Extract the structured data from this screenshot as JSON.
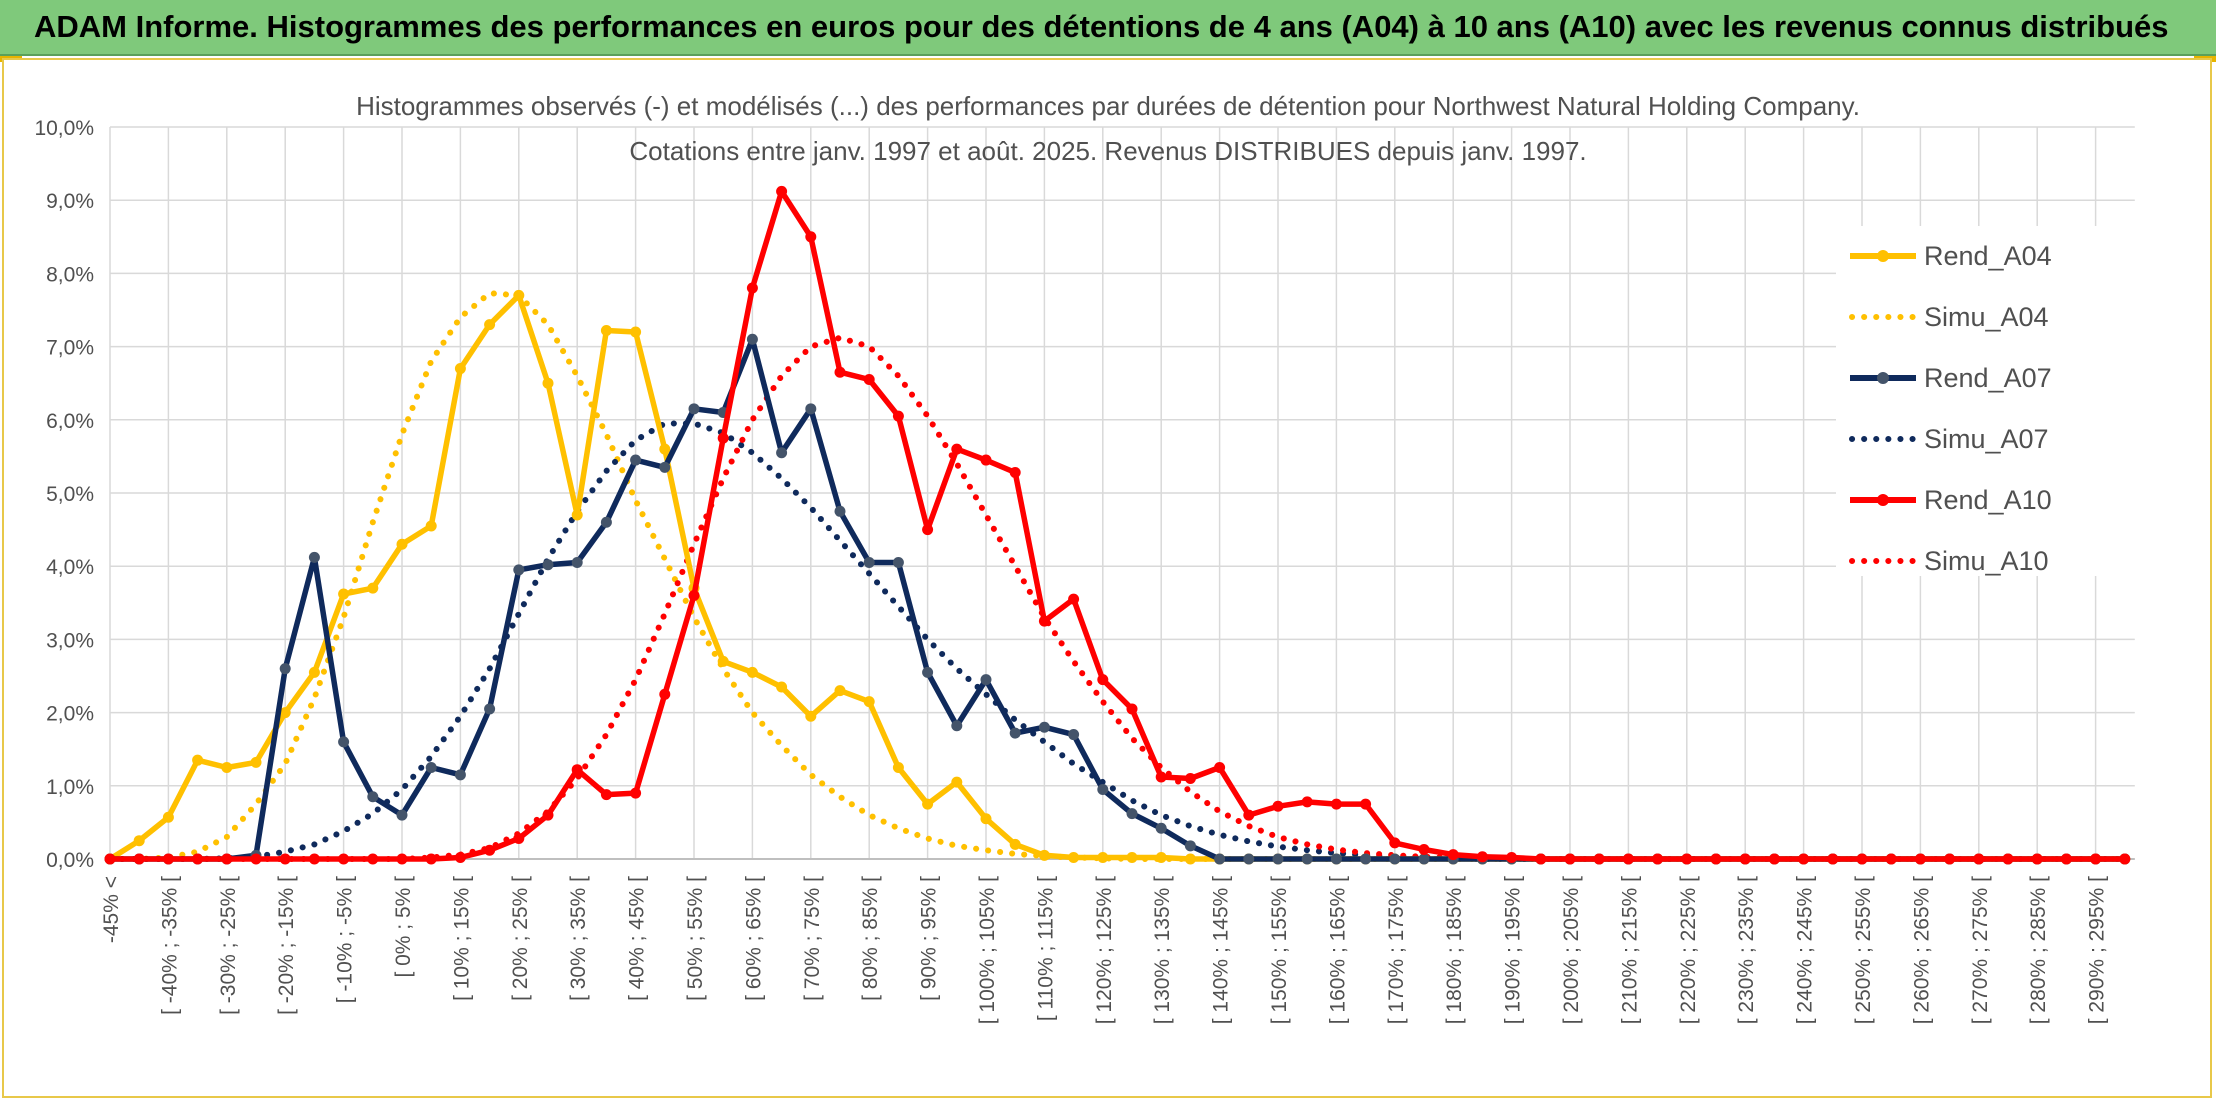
{
  "header": {
    "title": "ADAM Informe. Histogrammes des performances en euros pour des détentions de 4 ans (A04) à 10 ans (A10) avec les revenus connus distribués"
  },
  "colors": {
    "banner": "#7fc97b",
    "frame": "#e8c84a",
    "A04": "#ffc000",
    "A07": "#0f2a5c",
    "A07_marker": "#44546a",
    "A10": "#ff0000",
    "grid": "#d9d9d9",
    "text": "#505050"
  },
  "chart_data": {
    "type": "line",
    "title": "Histogrammes observés (-) et modélisés (...) des performances par durées de détention pour Northwest Natural Holding Company.",
    "subtitle": "Cotations entre janv. 1997 et août. 2025. Revenus DISTRIBUES depuis janv. 1997.",
    "xlabel": "",
    "ylabel": "",
    "ylim": [
      0,
      10
    ],
    "y_ticks": [
      "0,0%",
      "1,0%",
      "2,0%",
      "3,0%",
      "4,0%",
      "5,0%",
      "6,0%",
      "7,0%",
      "8,0%",
      "9,0%",
      "10,0%"
    ],
    "y_unit": "%",
    "grid": true,
    "legend_position": "right",
    "categories": [
      "-45% <",
      "",
      "[ -40% ; -35% [",
      "",
      "[ -30% ; -25% [",
      "",
      "[ -20% ; -15% [",
      "",
      "[ -10% ; -5% [",
      "",
      "[ 0% ; 5% [",
      "",
      "[ 10% ; 15% [",
      "",
      "[ 20% ; 25% [",
      "",
      "[ 30% ; 35% [",
      "",
      "[ 40% ; 45% [",
      "",
      "[ 50% ; 55% [",
      "",
      "[ 60% ; 65% [",
      "",
      "[ 70% ; 75% [",
      "",
      "[ 80% ; 85% [",
      "",
      "[ 90% ; 95% [",
      "",
      "[ 100% ; 105% [",
      "",
      "[ 110% ; 115% [",
      "",
      "[ 120% ; 125% [",
      "",
      "[ 130% ; 135% [",
      "",
      "[ 140% ; 145% [",
      "",
      "[ 150% ; 155% [",
      "",
      "[ 160% ; 165% [",
      "",
      "[ 170% ; 175% [",
      "",
      "[ 180% ; 185% [",
      "",
      "[ 190% ; 195% [",
      "",
      "[ 200% ; 205% [",
      "",
      "[ 210% ; 215% [",
      "",
      "[ 220% ; 225% [",
      "",
      "[ 230% ; 235% [",
      "",
      "[ 240% ; 245% [",
      "",
      "[ 250% ; 255% [",
      "",
      "[ 260% ; 265% [",
      "",
      "[ 270% ; 275% [",
      "",
      "[ 280% ; 285% [",
      "",
      "[ 290% ; 295% [",
      ""
    ],
    "series": [
      {
        "name": "Rend_A04",
        "style": "solid",
        "color": "#ffc000",
        "values": [
          0.0,
          0.25,
          0.57,
          1.35,
          1.25,
          1.32,
          2.0,
          2.55,
          3.62,
          3.7,
          4.3,
          4.55,
          6.7,
          7.3,
          7.7,
          6.5,
          4.7,
          7.22,
          7.2,
          5.6,
          3.7,
          2.7,
          2.55,
          2.35,
          1.95,
          2.3,
          2.15,
          1.25,
          0.75,
          1.05,
          0.55,
          0.2,
          0.05,
          0.02,
          0.02,
          0.02,
          0.02,
          0.0,
          0.0,
          0.0,
          0.0,
          0.0,
          0.0,
          0.0,
          0.0,
          0.0,
          0.0,
          0.0,
          0.0,
          0.0,
          0.0,
          0.0,
          0.0,
          0.0,
          0.0,
          0.0,
          0.0,
          0.0,
          0.0,
          0.0,
          0.0,
          0.0,
          0.0,
          0.0,
          0.0,
          0.0,
          0.0,
          0.0,
          0.0,
          0.0
        ]
      },
      {
        "name": "Simu_A04",
        "style": "dotted",
        "color": "#ffc000",
        "values": [
          0.0,
          0.0,
          0.02,
          0.1,
          0.3,
          0.75,
          1.3,
          2.2,
          3.3,
          4.6,
          5.8,
          6.8,
          7.4,
          7.73,
          7.7,
          7.3,
          6.6,
          5.8,
          4.9,
          4.1,
          3.3,
          2.6,
          2.0,
          1.55,
          1.15,
          0.85,
          0.6,
          0.42,
          0.28,
          0.18,
          0.12,
          0.07,
          0.04,
          0.02,
          0.01,
          0.0,
          0.0,
          0.0,
          0.0,
          0.0,
          0.0,
          0.0,
          0.0,
          0.0,
          0.0,
          0.0,
          0.0,
          0.0,
          0.0,
          0.0,
          0.0,
          0.0,
          0.0,
          0.0,
          0.0,
          0.0,
          0.0,
          0.0,
          0.0,
          0.0,
          0.0,
          0.0,
          0.0,
          0.0,
          0.0,
          0.0,
          0.0,
          0.0,
          0.0,
          0.0
        ]
      },
      {
        "name": "Rend_A07",
        "style": "solid",
        "color": "#0f2a5c",
        "values": [
          0.0,
          0.0,
          0.0,
          0.0,
          0.0,
          0.05,
          2.6,
          4.12,
          1.6,
          0.85,
          0.6,
          1.25,
          1.15,
          2.05,
          3.95,
          4.02,
          4.05,
          4.6,
          5.45,
          5.35,
          6.15,
          6.1,
          7.1,
          5.55,
          6.15,
          4.75,
          4.05,
          4.05,
          2.55,
          1.82,
          2.45,
          1.72,
          1.8,
          1.7,
          0.95,
          0.62,
          0.42,
          0.18,
          0.0,
          0.0,
          0.0,
          0.0,
          0.0,
          0.0,
          0.0,
          0.0,
          0.0,
          0.0,
          0.0,
          0.0,
          0.0,
          0.0,
          0.0,
          0.0,
          0.0,
          0.0,
          0.0,
          0.0,
          0.0,
          0.0,
          0.0,
          0.0,
          0.0,
          0.0,
          0.0,
          0.0,
          0.0,
          0.0,
          0.0,
          0.0
        ]
      },
      {
        "name": "Simu_A07",
        "style": "dotted",
        "color": "#0f2a5c",
        "values": [
          0.0,
          0.0,
          0.0,
          0.0,
          0.01,
          0.03,
          0.1,
          0.2,
          0.38,
          0.62,
          0.95,
          1.4,
          1.95,
          2.6,
          3.35,
          4.1,
          4.75,
          5.3,
          5.72,
          5.95,
          5.95,
          5.82,
          5.55,
          5.2,
          4.8,
          4.35,
          3.9,
          3.45,
          3.0,
          2.6,
          2.25,
          1.9,
          1.6,
          1.3,
          1.05,
          0.8,
          0.6,
          0.45,
          0.33,
          0.24,
          0.17,
          0.12,
          0.08,
          0.05,
          0.03,
          0.02,
          0.01,
          0.0,
          0.0,
          0.0,
          0.0,
          0.0,
          0.0,
          0.0,
          0.0,
          0.0,
          0.0,
          0.0,
          0.0,
          0.0,
          0.0,
          0.0,
          0.0,
          0.0,
          0.0,
          0.0,
          0.0,
          0.0,
          0.0,
          0.0
        ]
      },
      {
        "name": "Rend_A10",
        "style": "solid",
        "color": "#ff0000",
        "values": [
          0.0,
          0.0,
          0.0,
          0.0,
          0.0,
          0.0,
          0.0,
          0.0,
          0.0,
          0.0,
          0.0,
          0.0,
          0.02,
          0.12,
          0.28,
          0.6,
          1.22,
          0.88,
          0.9,
          2.25,
          3.6,
          5.75,
          7.8,
          9.12,
          8.5,
          6.65,
          6.55,
          6.05,
          4.5,
          5.6,
          5.45,
          5.28,
          3.25,
          3.55,
          2.45,
          2.05,
          1.12,
          1.1,
          1.25,
          0.6,
          0.72,
          0.78,
          0.75,
          0.75,
          0.22,
          0.13,
          0.06,
          0.03,
          0.02,
          0.0,
          0.0,
          0.0,
          0.0,
          0.0,
          0.0,
          0.0,
          0.0,
          0.0,
          0.0,
          0.0,
          0.0,
          0.0,
          0.0,
          0.0,
          0.0,
          0.0,
          0.0,
          0.0,
          0.0,
          0.0
        ]
      },
      {
        "name": "Simu_A10",
        "style": "dotted",
        "color": "#ff0000",
        "values": [
          0.0,
          0.0,
          0.0,
          0.0,
          0.0,
          0.0,
          0.0,
          0.0,
          0.0,
          0.0,
          0.0,
          0.02,
          0.06,
          0.15,
          0.35,
          0.65,
          1.1,
          1.7,
          2.45,
          3.35,
          4.3,
          5.2,
          6.0,
          6.6,
          7.0,
          7.12,
          7.0,
          6.6,
          6.05,
          5.4,
          4.7,
          4.0,
          3.3,
          2.7,
          2.15,
          1.65,
          1.25,
          0.92,
          0.65,
          0.45,
          0.3,
          0.2,
          0.13,
          0.08,
          0.05,
          0.03,
          0.02,
          0.01,
          0.0,
          0.0,
          0.0,
          0.0,
          0.0,
          0.0,
          0.0,
          0.0,
          0.0,
          0.0,
          0.0,
          0.0,
          0.0,
          0.0,
          0.0,
          0.0,
          0.0,
          0.0,
          0.0,
          0.0,
          0.0,
          0.0
        ]
      }
    ]
  },
  "legend": {
    "items": [
      {
        "label": "Rend_A04"
      },
      {
        "label": "Simu_A04"
      },
      {
        "label": "Rend_A07"
      },
      {
        "label": "Simu_A07"
      },
      {
        "label": "Rend_A10"
      },
      {
        "label": "Simu_A10"
      }
    ]
  }
}
